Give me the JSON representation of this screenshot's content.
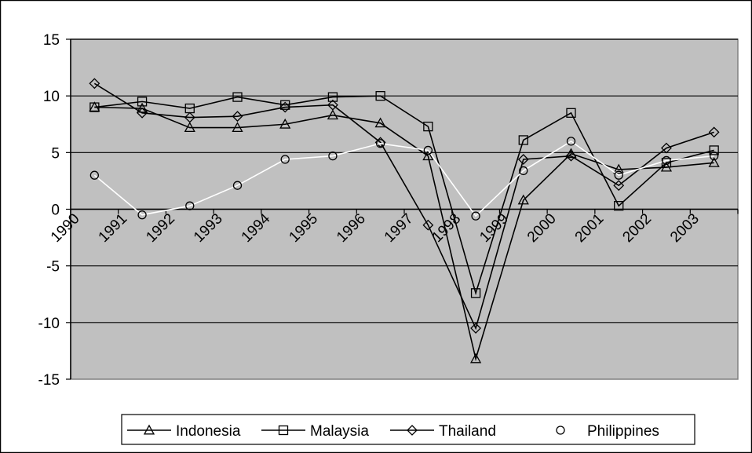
{
  "chart_data": {
    "type": "line",
    "title": "",
    "xlabel": "",
    "ylabel": "",
    "ylim": [
      -15,
      15
    ],
    "yticks": [
      15,
      10,
      5,
      0,
      -5,
      -10,
      -15
    ],
    "x_tick_labels": [
      "1990",
      "1991",
      "1992",
      "1993",
      "1994",
      "1995",
      "1996",
      "1997",
      "1998",
      "1999",
      "2000",
      "2001",
      "2002",
      "2003"
    ],
    "grid": "horizontal",
    "legend_position": "bottom",
    "plot_background": "#c0c0c0",
    "series": [
      {
        "name": "Indonesia",
        "marker": "triangle",
        "line_color": "#000000",
        "values": [
          9.0,
          8.9,
          7.2,
          7.2,
          7.5,
          8.3,
          7.6,
          4.7,
          -13.2,
          0.8,
          4.9,
          3.5,
          3.7,
          4.1
        ]
      },
      {
        "name": "Malaysia",
        "marker": "square",
        "line_color": "#000000",
        "values": [
          9.0,
          9.5,
          8.9,
          9.9,
          9.2,
          9.9,
          10.0,
          7.3,
          -7.4,
          6.1,
          8.5,
          0.3,
          4.1,
          5.2
        ]
      },
      {
        "name": "Thailand",
        "marker": "diamond",
        "line_color": "#000000",
        "values": [
          11.1,
          8.5,
          8.1,
          8.2,
          9.0,
          9.2,
          5.9,
          -1.4,
          -10.5,
          4.4,
          4.7,
          2.1,
          5.4,
          6.8
        ]
      },
      {
        "name": "Philippines",
        "marker": "circle",
        "line_color": "#ffffff",
        "values": [
          3.0,
          -0.5,
          0.3,
          2.1,
          4.4,
          4.7,
          5.8,
          5.2,
          -0.6,
          3.4,
          6.0,
          3.0,
          4.3,
          4.7
        ]
      }
    ]
  }
}
